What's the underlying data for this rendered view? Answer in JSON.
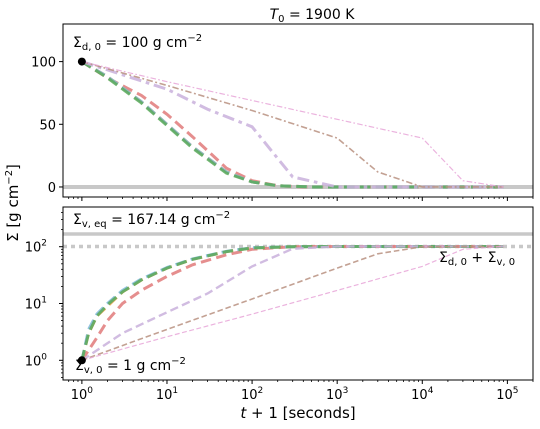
{
  "chart_data": {
    "type": "line",
    "title": "T_0 = 1900 K",
    "ylabel": "Σ [g cm^-2]",
    "xlabel": "t + 1 [seconds]",
    "xscale": "log",
    "xlim": [
      0.6,
      200000
    ],
    "x_ticks": [
      1,
      10,
      100,
      1000,
      10000,
      100000
    ],
    "x_tick_labels": [
      {
        "base": "10",
        "exp": "0"
      },
      {
        "base": "10",
        "exp": "1"
      },
      {
        "base": "10",
        "exp": "2"
      },
      {
        "base": "10",
        "exp": "3"
      },
      {
        "base": "10",
        "exp": "4"
      },
      {
        "base": "10",
        "exp": "5"
      }
    ],
    "top_panel": {
      "yscale": "linear",
      "ylim": [
        -8,
        130
      ],
      "y_ticks": [
        0,
        50,
        100
      ],
      "y_tick_labels": [
        "0",
        "50",
        "100"
      ],
      "hline": 0,
      "start_point": {
        "x": 1,
        "y": 100
      },
      "annotation": {
        "symbol": "Σ",
        "sub": "d, 0",
        "text": " = 100 g cm",
        "sup": "−2"
      },
      "series": [
        {
          "color": "#e07a7a",
          "style": "dash",
          "width": 3,
          "x": [
            1,
            2,
            5,
            10,
            20,
            50,
            100,
            200,
            400,
            1000,
            90000
          ],
          "y": [
            100,
            87,
            73,
            58,
            40,
            15,
            5,
            1,
            0,
            0,
            0
          ]
        },
        {
          "color": "#f2a14a",
          "style": "dash",
          "width": 3,
          "x": [
            1,
            2,
            5,
            10,
            20,
            50,
            100,
            200,
            500,
            1000,
            90000
          ],
          "y": [
            100,
            88,
            68,
            50,
            32,
            12,
            4,
            1,
            0,
            0,
            0
          ]
        },
        {
          "color": "#7fb8d9",
          "style": "dash",
          "width": 3,
          "x": [
            1,
            2,
            5,
            10,
            20,
            50,
            100,
            200,
            500,
            1000,
            90000
          ],
          "y": [
            100,
            88,
            68,
            50,
            32,
            12,
            4,
            1,
            0,
            0,
            0
          ]
        },
        {
          "color": "#5aaa5a",
          "style": "dash",
          "width": 3,
          "x": [
            1,
            2,
            5,
            10,
            20,
            50,
            100,
            200,
            500,
            1000,
            90000
          ],
          "y": [
            100,
            87,
            67,
            49,
            31,
            11,
            4,
            1,
            0,
            0,
            0
          ]
        },
        {
          "color": "#c9b0dc",
          "style": "dashdot",
          "width": 3,
          "x": [
            1,
            10,
            30,
            100,
            300,
            1000,
            3000,
            90000
          ],
          "y": [
            100,
            78,
            62,
            48,
            8,
            0,
            0,
            0
          ]
        },
        {
          "color": "#b89080",
          "style": "dashdot",
          "width": 1.6,
          "x": [
            1,
            10,
            100,
            1000,
            3000,
            10000,
            90000
          ],
          "y": [
            100,
            81,
            61,
            39,
            12,
            0,
            0
          ]
        },
        {
          "color": "#e8a6d8",
          "style": "dashdot",
          "width": 1.2,
          "x": [
            1,
            10,
            100,
            1000,
            10000,
            30000,
            90000
          ],
          "y": [
            100,
            84,
            69,
            54,
            39,
            5,
            0
          ]
        }
      ]
    },
    "bottom_panel": {
      "yscale": "log",
      "ylim": [
        0.45,
        500
      ],
      "y_ticks": [
        1,
        10,
        100
      ],
      "y_tick_labels": [
        {
          "base": "10",
          "exp": "0"
        },
        {
          "base": "10",
          "exp": "1"
        },
        {
          "base": "10",
          "exp": "2"
        }
      ],
      "eq_line": 167.14,
      "sum_line": 101,
      "start_point": {
        "x": 1,
        "y": 1
      },
      "annotation_eq": {
        "symbol": "Σ",
        "sub": "v, eq",
        "text": " = 167.14 g cm",
        "sup": "−2"
      },
      "annotation_sum": {
        "symbol1": "Σ",
        "sub1": "d, 0",
        "plus": " + ",
        "symbol2": "Σ",
        "sub2": "v, 0"
      },
      "annotation_start": {
        "symbol": "Σ",
        "sub": "v, 0",
        "text": " = 1 g cm",
        "sup": "−2"
      },
      "series": [
        {
          "color": "#e07a7a",
          "style": "dash",
          "width": 3,
          "x": [
            1,
            1.5,
            2,
            3,
            5,
            10,
            20,
            50,
            100,
            300,
            1000,
            90000
          ],
          "y": [
            1,
            2.5,
            5,
            10,
            17,
            30,
            48,
            72,
            90,
            100,
            101,
            101
          ]
        },
        {
          "color": "#f2a14a",
          "style": "dash",
          "width": 3,
          "x": [
            1,
            1.2,
            1.5,
            2,
            3,
            5,
            10,
            20,
            50,
            100,
            300,
            1000,
            90000
          ],
          "y": [
            1,
            3,
            6,
            9,
            16,
            26,
            42,
            60,
            82,
            95,
            100,
            101,
            101
          ]
        },
        {
          "color": "#7fb8d9",
          "style": "dash",
          "width": 3,
          "x": [
            1,
            1.2,
            1.5,
            2,
            3,
            5,
            10,
            20,
            50,
            100,
            300,
            1000,
            90000
          ],
          "y": [
            1,
            3.5,
            6.5,
            10,
            17,
            27,
            43,
            61,
            83,
            96,
            100,
            101,
            101
          ]
        },
        {
          "color": "#5aaa5a",
          "style": "dash",
          "width": 3,
          "x": [
            1,
            1.2,
            1.5,
            2,
            3,
            5,
            10,
            20,
            50,
            100,
            300,
            1000,
            90000
          ],
          "y": [
            1,
            3,
            6,
            9.5,
            16,
            26,
            42,
            60,
            82,
            95,
            100,
            101,
            101
          ]
        },
        {
          "color": "#c9b0dc",
          "style": "dash",
          "width": 2.4,
          "x": [
            1,
            3,
            10,
            30,
            100,
            300,
            1000,
            90000
          ],
          "y": [
            1,
            3,
            7,
            15,
            45,
            92,
            101,
            101
          ]
        },
        {
          "color": "#b89080",
          "style": "dash",
          "width": 1.6,
          "x": [
            1,
            10,
            100,
            1000,
            3000,
            10000,
            90000
          ],
          "y": [
            1,
            3.5,
            12,
            42,
            75,
            100,
            101
          ]
        },
        {
          "color": "#e8a6d8",
          "style": "dash",
          "width": 1.2,
          "x": [
            1,
            10,
            100,
            1000,
            10000,
            30000,
            90000
          ],
          "y": [
            1,
            2.6,
            6.5,
            17,
            45,
            90,
            101
          ]
        }
      ]
    }
  }
}
